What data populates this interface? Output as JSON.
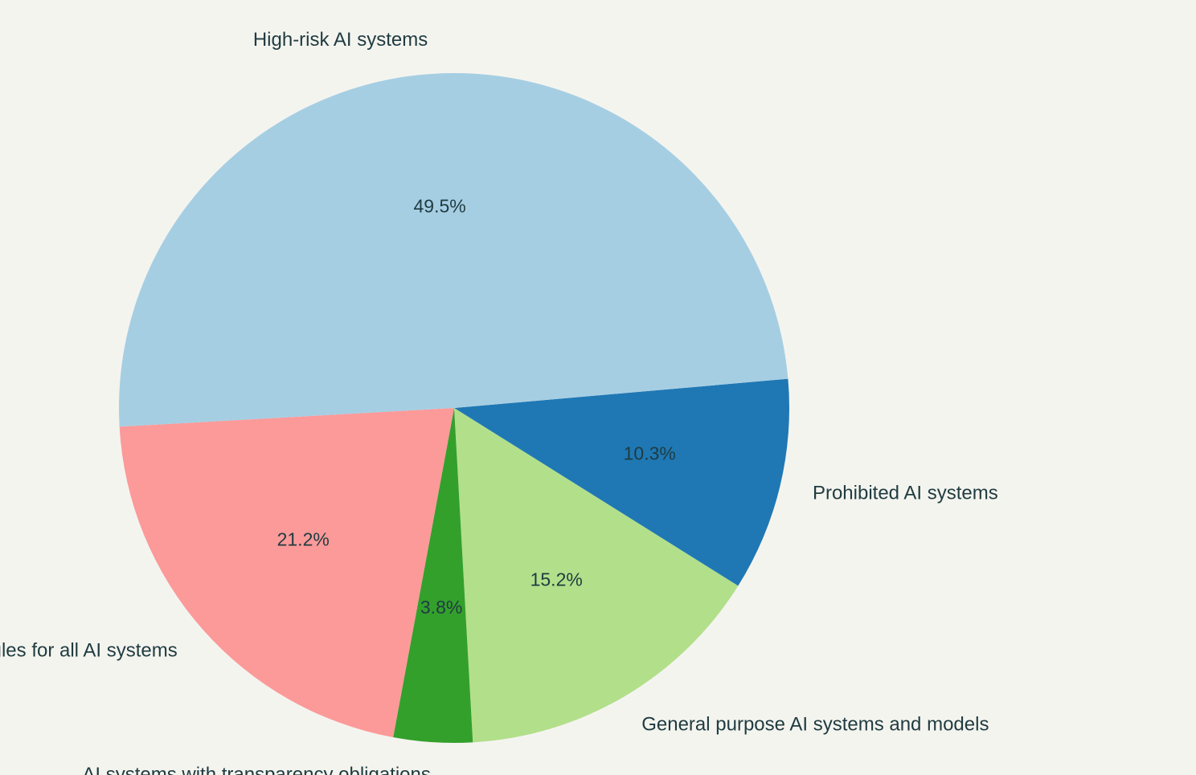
{
  "chart_data": {
    "type": "pie",
    "categories": [
      "Prohibited AI systems",
      "General purpose AI systems and models",
      "AI systems with transparency obligations",
      "Common rules for all AI systems",
      "High-risk AI systems"
    ],
    "values": [
      10.3,
      15.2,
      3.8,
      21.2,
      49.5
    ],
    "value_labels": [
      "10.3%",
      "15.2%",
      "3.8%",
      "21.2%",
      "49.5%"
    ],
    "colors": [
      "#1f78b4",
      "#b2df8a",
      "#33a02c",
      "#fb9a99",
      "#a6cee3"
    ]
  }
}
